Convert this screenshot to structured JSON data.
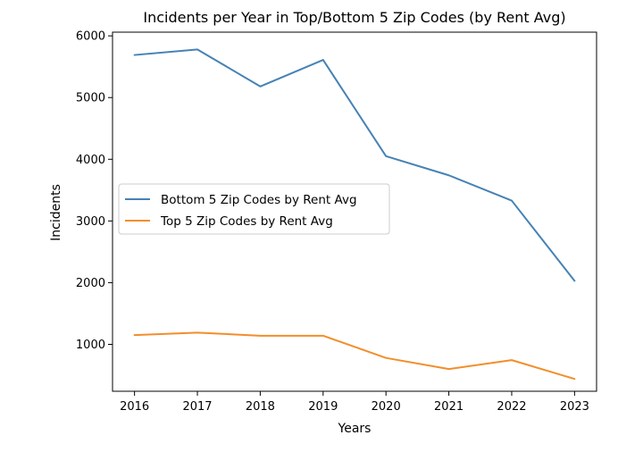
{
  "chart_data": {
    "type": "line",
    "title": "Incidents per Year in Top/Bottom 5 Zip Codes (by Rent Avg)",
    "xlabel": "Years",
    "ylabel": "Incidents",
    "x": [
      2016,
      2017,
      2018,
      2019,
      2020,
      2021,
      2022,
      2023
    ],
    "x_tick_labels": [
      "2016",
      "2017",
      "2018",
      "2019",
      "2020",
      "2021",
      "2022",
      "2023"
    ],
    "y_ticks": [
      1000,
      2000,
      3000,
      4000,
      5000,
      6000
    ],
    "y_tick_labels": [
      "1000",
      "2000",
      "3000",
      "4000",
      "5000",
      "6000"
    ],
    "xlim": [
      2015.65,
      2023.35
    ],
    "ylim": [
      240,
      6060
    ],
    "grid": false,
    "legend_position": "center-left",
    "series": [
      {
        "name": "Bottom 5 Zip Codes by Rent Avg",
        "color": "#4682b4",
        "values": [
          5690,
          5780,
          5180,
          5610,
          4050,
          3740,
          3330,
          2030
        ]
      },
      {
        "name": "Top 5 Zip Codes by Rent Avg",
        "color": "#f28e2b",
        "values": [
          1150,
          1190,
          1140,
          1140,
          780,
          600,
          745,
          440
        ]
      }
    ]
  }
}
